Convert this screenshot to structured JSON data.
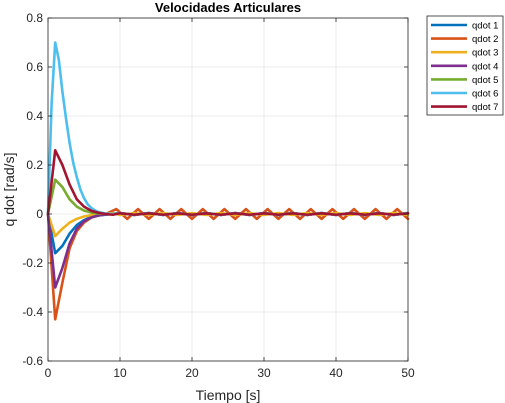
{
  "chart_data": {
    "type": "line",
    "title": "Velocidades Articulares",
    "xlabel": "Tiempo [s]",
    "ylabel": "q dot [rad/s]",
    "xlim": [
      0,
      50
    ],
    "ylim": [
      -0.6,
      0.8
    ],
    "xticks": [
      0,
      10,
      20,
      30,
      40,
      50
    ],
    "yticks": [
      -0.6,
      -0.4,
      -0.2,
      0,
      0.2,
      0.4,
      0.6,
      0.8
    ],
    "xtick_labels": [
      "0",
      "10",
      "20",
      "30",
      "40",
      "50"
    ],
    "ytick_labels": [
      "-0.6",
      "-0.4",
      "-0.2",
      "0",
      "0.2",
      "0.4",
      "0.6",
      "0.8"
    ],
    "grid": true,
    "legend_position": "outside-top-right",
    "series": [
      {
        "name": "qdot 1",
        "color": "#0072BD",
        "x": [
          0,
          1,
          2,
          3,
          4,
          5,
          6,
          7,
          8,
          9,
          10,
          12,
          14,
          16,
          18,
          20,
          22,
          24,
          26,
          28,
          30,
          32,
          34,
          36,
          38,
          40,
          42,
          44,
          46,
          48,
          50
        ],
        "y": [
          0,
          -0.16,
          -0.13,
          -0.08,
          -0.045,
          -0.025,
          -0.012,
          -0.006,
          -0.003,
          0,
          0.004,
          -0.004,
          0.004,
          -0.004,
          0.004,
          -0.004,
          0.004,
          -0.004,
          0.004,
          -0.004,
          0.004,
          -0.004,
          0.004,
          -0.004,
          0.004,
          -0.004,
          0.004,
          -0.004,
          0.004,
          -0.004,
          0.004
        ]
      },
      {
        "name": "qdot 2",
        "color": "#D95319",
        "x": [
          0,
          1,
          2,
          3,
          4,
          5,
          6,
          7,
          8,
          9.5,
          11,
          12.5,
          14,
          15.5,
          17,
          18.5,
          20,
          21.5,
          23,
          24.5,
          26,
          27.5,
          29,
          30.5,
          32,
          33.5,
          35,
          36.5,
          38,
          39.5,
          41,
          42.5,
          44,
          45.5,
          47,
          48.5,
          50
        ],
        "y": [
          0,
          -0.43,
          -0.28,
          -0.14,
          -0.07,
          -0.035,
          -0.015,
          -0.006,
          0,
          0.02,
          -0.02,
          0.02,
          -0.02,
          0.02,
          -0.02,
          0.02,
          -0.02,
          0.02,
          -0.02,
          0.02,
          -0.02,
          0.02,
          -0.02,
          0.02,
          -0.02,
          0.02,
          -0.02,
          0.02,
          -0.02,
          0.02,
          -0.02,
          0.02,
          -0.02,
          0.02,
          -0.02,
          0.02,
          -0.02
        ]
      },
      {
        "name": "qdot 3",
        "color": "#EDB120",
        "x": [
          0,
          1,
          2,
          3,
          4,
          5,
          6,
          7,
          8,
          9,
          10,
          12,
          14,
          16,
          18,
          20,
          22,
          24,
          26,
          28,
          30,
          32,
          34,
          36,
          38,
          40,
          42,
          44,
          46,
          48,
          50
        ],
        "y": [
          0,
          -0.09,
          -0.06,
          -0.035,
          -0.02,
          -0.01,
          -0.005,
          -0.002,
          0,
          0.004,
          -0.004,
          0.004,
          -0.004,
          0.004,
          -0.004,
          0.004,
          -0.004,
          0.004,
          -0.004,
          0.004,
          -0.004,
          0.004,
          -0.004,
          0.004,
          -0.004,
          0.004,
          -0.004,
          0.004,
          -0.004,
          0.004,
          -0.004
        ]
      },
      {
        "name": "qdot 4",
        "color": "#7E2F8E",
        "x": [
          0,
          1,
          2,
          3,
          4,
          5,
          6,
          7,
          8,
          9,
          10,
          12,
          14,
          16,
          18,
          20,
          22,
          24,
          26,
          28,
          30,
          32,
          34,
          36,
          38,
          40,
          42,
          44,
          46,
          48,
          50
        ],
        "y": [
          0,
          -0.3,
          -0.22,
          -0.12,
          -0.06,
          -0.03,
          -0.014,
          -0.006,
          -0.002,
          0,
          0.004,
          -0.004,
          0.004,
          -0.004,
          0.004,
          -0.004,
          0.004,
          -0.004,
          0.004,
          -0.004,
          0.004,
          -0.004,
          0.004,
          -0.004,
          0.004,
          -0.004,
          0.004,
          -0.004,
          0.004,
          -0.004,
          0.004
        ]
      },
      {
        "name": "qdot 5",
        "color": "#77AC30",
        "x": [
          0,
          1,
          2,
          3,
          4,
          5,
          6,
          7,
          8,
          9,
          10,
          12,
          14,
          16,
          18,
          20,
          22,
          24,
          26,
          28,
          30,
          32,
          34,
          36,
          38,
          40,
          42,
          44,
          46,
          48,
          50
        ],
        "y": [
          0,
          0.14,
          0.11,
          0.06,
          0.03,
          0.014,
          0.006,
          0.002,
          0,
          -0.002,
          0.003,
          -0.003,
          0.003,
          -0.003,
          0.003,
          -0.003,
          0.003,
          -0.003,
          0.003,
          -0.003,
          0.003,
          -0.003,
          0.003,
          -0.003,
          0.003,
          -0.003,
          0.003,
          -0.003,
          0.003,
          -0.003,
          0.003
        ]
      },
      {
        "name": "qdot 6",
        "color": "#4DBEEE",
        "x": [
          0,
          0.5,
          1,
          1.5,
          2,
          2.5,
          3,
          3.5,
          4,
          4.5,
          5,
          5.5,
          6,
          6.5,
          7,
          8,
          9,
          10,
          12,
          14,
          16,
          18,
          20,
          22,
          24,
          26,
          28,
          30,
          32,
          34,
          36,
          38,
          40,
          42,
          44,
          46,
          48,
          50
        ],
        "y": [
          0,
          0.45,
          0.7,
          0.63,
          0.5,
          0.39,
          0.29,
          0.21,
          0.15,
          0.1,
          0.065,
          0.04,
          0.025,
          0.015,
          0.008,
          0.002,
          0,
          0.004,
          -0.004,
          0.004,
          -0.004,
          0.004,
          -0.004,
          0.004,
          -0.004,
          0.004,
          -0.004,
          0.004,
          -0.004,
          0.004,
          -0.004,
          0.004,
          -0.004,
          0.004,
          -0.004,
          0.004,
          -0.004,
          0.004
        ]
      },
      {
        "name": "qdot 7",
        "color": "#A2142F",
        "x": [
          0,
          1,
          2,
          3,
          4,
          5,
          6,
          7,
          8,
          9,
          10,
          12,
          14,
          16,
          18,
          20,
          22,
          24,
          26,
          28,
          30,
          32,
          34,
          36,
          38,
          40,
          42,
          44,
          46,
          48,
          50
        ],
        "y": [
          0,
          0.26,
          0.2,
          0.12,
          0.06,
          0.03,
          0.013,
          0.005,
          0,
          -0.003,
          0.003,
          -0.003,
          0.003,
          -0.003,
          0.003,
          -0.003,
          0.003,
          -0.003,
          0.003,
          -0.003,
          0.003,
          -0.003,
          0.003,
          -0.003,
          0.003,
          -0.003,
          0.003,
          -0.003,
          0.003,
          -0.003,
          0.003
        ]
      }
    ]
  }
}
